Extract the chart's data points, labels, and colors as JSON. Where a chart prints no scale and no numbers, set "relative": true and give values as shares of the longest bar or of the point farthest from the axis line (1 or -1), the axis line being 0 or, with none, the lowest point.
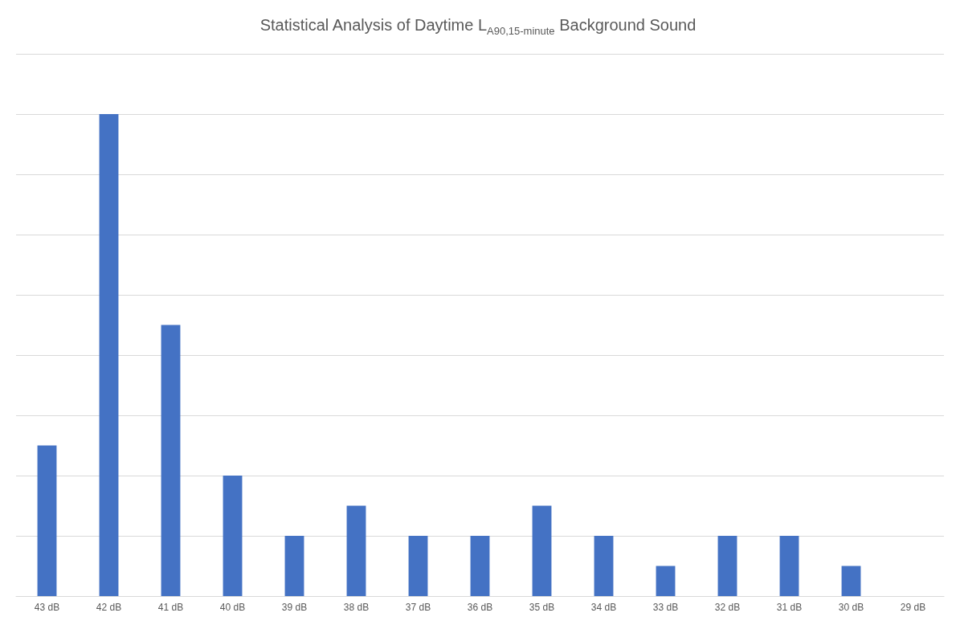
{
  "chart_data": {
    "type": "bar",
    "title": "Statistical Analysis of Daytime L$_{A90,15-minute}$ Background Sound",
    "categories": [
      "43 dB",
      "42 dB",
      "41 dB",
      "40 dB",
      "39 dB",
      "38 dB",
      "37 dB",
      "36 dB",
      "35 dB",
      "34 dB",
      "33 dB",
      "32 dB",
      "31 dB",
      "30 dB",
      "29 dB"
    ],
    "values": [
      0.3125,
      1,
      0.5625,
      0.25,
      0.125,
      0.1875,
      0.125,
      0.125,
      0.1875,
      0.125,
      0.0625,
      0.125,
      0.125,
      0.0625,
      0
    ],
    "color": "#4472c4",
    "relative": true,
    "grid": "y"
  }
}
